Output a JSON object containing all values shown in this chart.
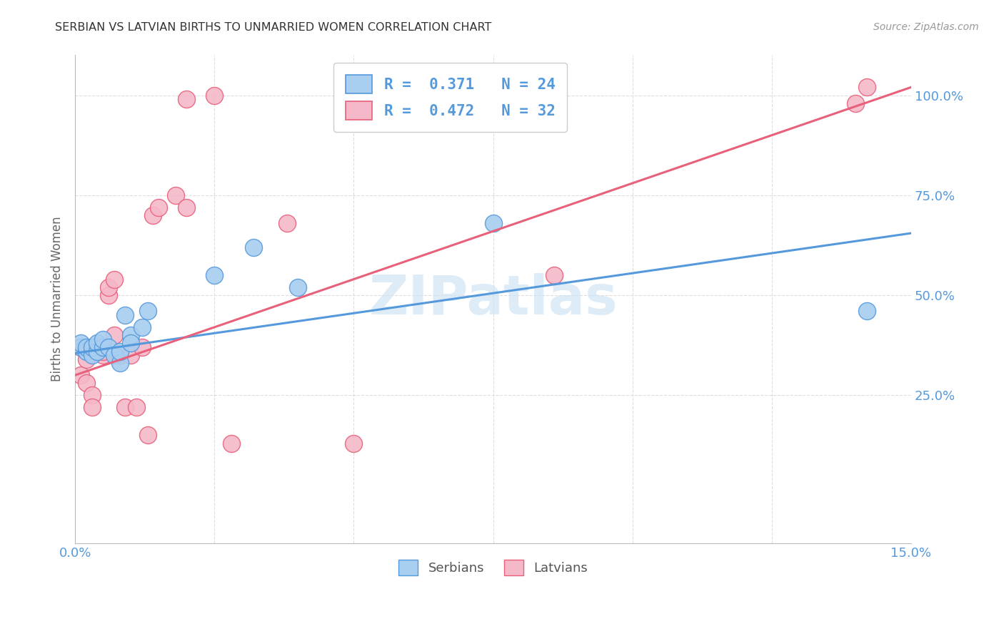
{
  "title": "SERBIAN VS LATVIAN BIRTHS TO UNMARRIED WOMEN CORRELATION CHART",
  "source": "Source: ZipAtlas.com",
  "ylabel_label": "Births to Unmarried Women",
  "xlim": [
    0.0,
    0.15
  ],
  "ylim": [
    -0.12,
    1.1
  ],
  "xtick_positions": [
    0.0,
    0.025,
    0.05,
    0.075,
    0.1,
    0.125,
    0.15
  ],
  "xtick_labels": [
    "0.0%",
    "",
    "",
    "",
    "",
    "",
    "15.0%"
  ],
  "ytick_positions": [
    0.0,
    0.25,
    0.5,
    0.75,
    1.0
  ],
  "ytick_labels_right": [
    "",
    "25.0%",
    "50.0%",
    "75.0%",
    "100.0%"
  ],
  "legend_serbian": "R =  0.371   N = 24",
  "legend_latvian": "R =  0.472   N = 32",
  "serbian_color": "#a8cef0",
  "latvian_color": "#f5b8c8",
  "serbian_line_color": "#5599dd",
  "latvian_line_color": "#e8607a",
  "grid_color": "#dddddd",
  "tick_label_color": "#5599dd",
  "watermark": "ZIPatlas",
  "watermark_color": "#d0e4f5",
  "serbian_x": [
    0.001,
    0.001,
    0.002,
    0.002,
    0.003,
    0.003,
    0.004,
    0.004,
    0.005,
    0.005,
    0.006,
    0.007,
    0.008,
    0.008,
    0.009,
    0.01,
    0.01,
    0.012,
    0.013,
    0.025,
    0.032,
    0.04,
    0.075,
    0.142
  ],
  "serbian_y": [
    0.37,
    0.38,
    0.36,
    0.37,
    0.35,
    0.37,
    0.36,
    0.38,
    0.37,
    0.39,
    0.37,
    0.35,
    0.33,
    0.36,
    0.45,
    0.4,
    0.38,
    0.42,
    0.46,
    0.55,
    0.62,
    0.52,
    0.68,
    0.46
  ],
  "latvian_x": [
    0.001,
    0.001,
    0.002,
    0.002,
    0.003,
    0.003,
    0.003,
    0.004,
    0.005,
    0.005,
    0.006,
    0.006,
    0.007,
    0.007,
    0.008,
    0.009,
    0.01,
    0.011,
    0.012,
    0.013,
    0.014,
    0.015,
    0.018,
    0.02,
    0.02,
    0.025,
    0.028,
    0.038,
    0.05,
    0.086,
    0.14,
    0.142
  ],
  "latvian_y": [
    0.37,
    0.3,
    0.34,
    0.28,
    0.37,
    0.25,
    0.22,
    0.37,
    0.35,
    0.36,
    0.5,
    0.52,
    0.54,
    0.4,
    0.35,
    0.22,
    0.35,
    0.22,
    0.37,
    0.15,
    0.7,
    0.72,
    0.75,
    0.99,
    0.72,
    1.0,
    0.13,
    0.68,
    0.13,
    0.55,
    0.98,
    1.02
  ],
  "serbian_trend_x": [
    0.0,
    0.15
  ],
  "serbian_trend_y": [
    0.355,
    0.655
  ],
  "latvian_trend_x": [
    0.0,
    0.15
  ],
  "latvian_trend_y": [
    0.3,
    1.02
  ]
}
